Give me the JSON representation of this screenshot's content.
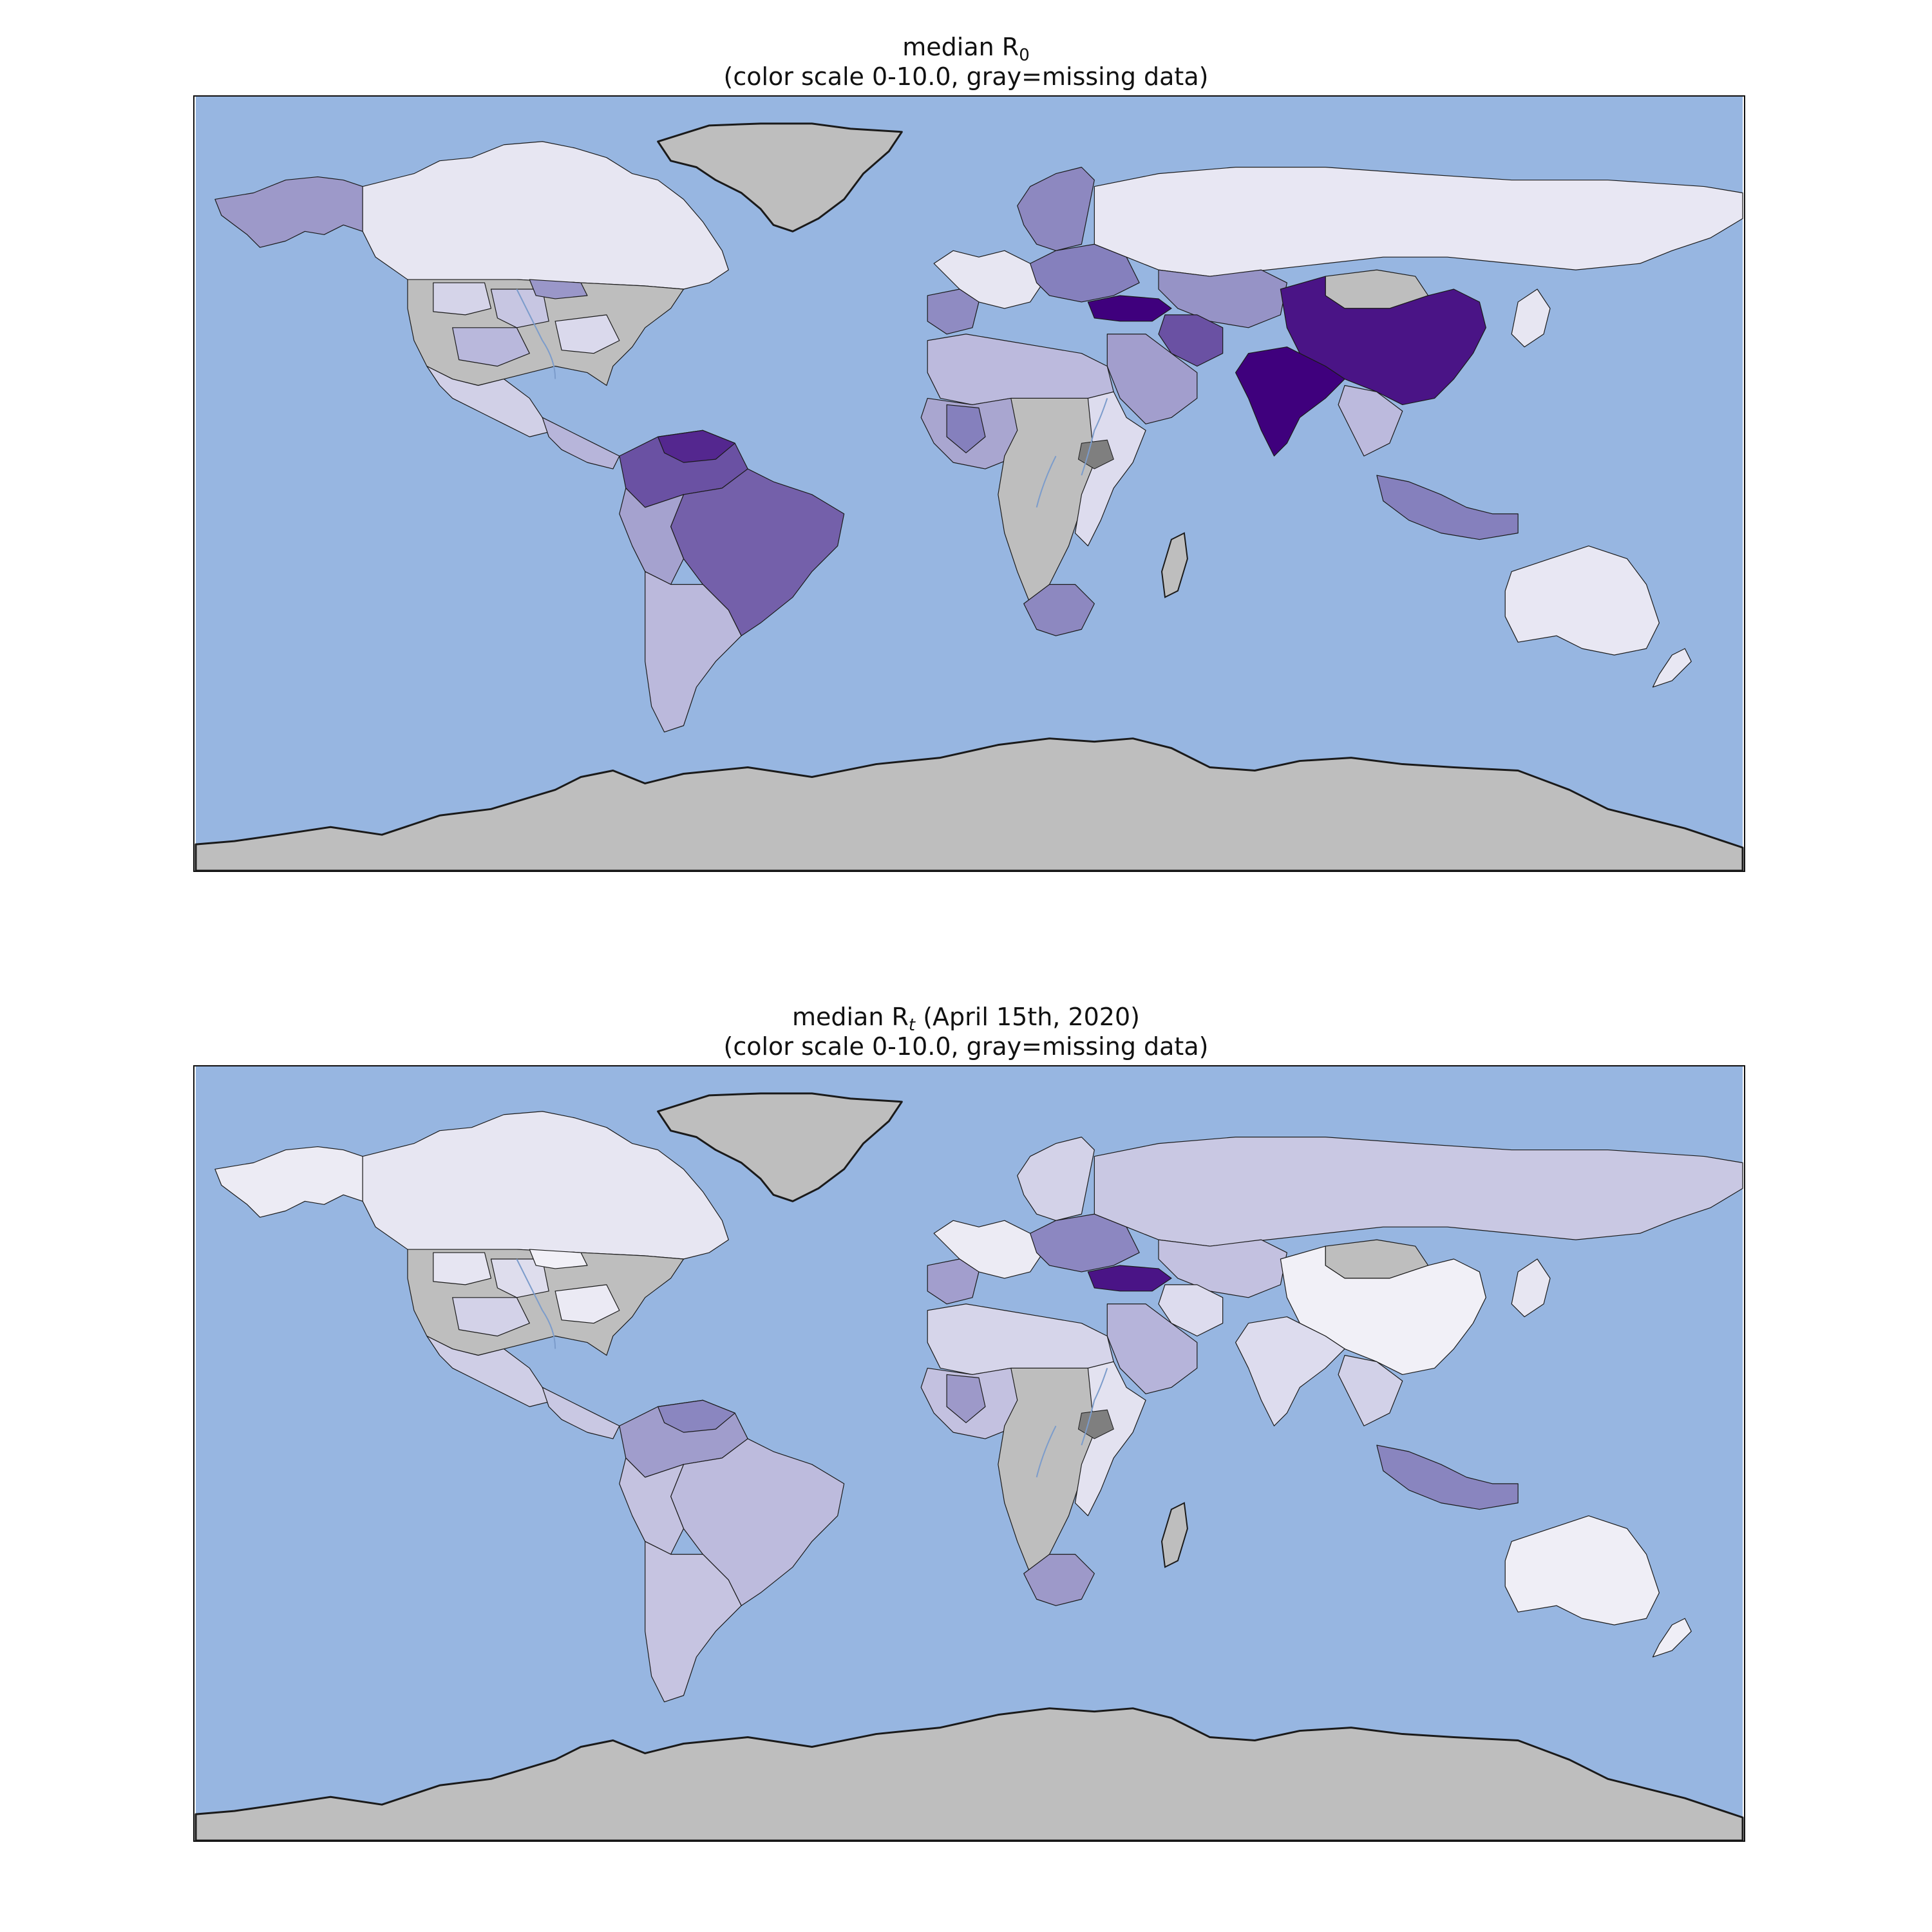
{
  "maps": [
    {
      "title_main": "median R",
      "title_sub": "0",
      "title_suffix": "",
      "subtitle": "(color scale 0-10.0, gray=missing data)"
    },
    {
      "title_main": "median R",
      "title_sub": "t",
      "title_suffix": " (April 15th, 2020)",
      "subtitle": "(color scale 0-10.0, gray=missing data)"
    }
  ],
  "colors": {
    "ocean": "#97b6e1",
    "missing": "#bebebe",
    "dark_missing": "#7f7f7f",
    "coast": "#1a1a1a",
    "river": "#7c9ccb"
  },
  "color_scale": {
    "min": 0,
    "max": 10.0
  },
  "regions": {
    "r0": {
      "canada": "#e7e6f2",
      "alaska": "#9d99c9",
      "greenland": "#bebebe",
      "usa": "#bebebe",
      "us_states": [
        "#d5d4e9",
        "#c7c6e2",
        "#9a97c9",
        "#b9b8dc",
        "#dad9ec"
      ],
      "mexico": "#d1d0e7",
      "central_america": "#b7b5da",
      "colombia_venezuela": "#6a51a3",
      "venezuela_core": "#54278f",
      "brazil": "#7460aa",
      "andes": "#a5a2cf",
      "southern_cone": "#bbb9dc",
      "western_europe": "#e7e6f2",
      "scandinavia": "#8d88c0",
      "eastern_europe": "#8580bd",
      "iberia": "#8f8bc2",
      "russia": "#e8e7f3",
      "turkey": "#3f007d",
      "iran": "#6a51a3",
      "central_asia": "#9693c6",
      "mongolia": "#bebebe",
      "china": "#4a1486",
      "india": "#3f007d",
      "arabia": "#a29ecd",
      "north_africa": "#bcbadd",
      "west_africa": "#a9a6d0",
      "west_africa_dark": "#8580bd",
      "central_africa": "#bebebe",
      "east_africa": "#dddcee",
      "south_africa": "#8d88c0",
      "southeast_asia": "#bcbadd",
      "indonesia": "#8580bd",
      "australia": "#e8e7f3",
      "nz": "#e8e7f3",
      "japan": "#e7e6f2",
      "antarctica": "#bebebe"
    },
    "rt": {
      "canada": "#e7e6f2",
      "alaska": "#ecebf4",
      "greenland": "#bebebe",
      "usa": "#bebebe",
      "us_states": [
        "#e6e5f2",
        "#dedded",
        "#f1f0f7",
        "#d3d2e8",
        "#ebeaf4"
      ],
      "mexico": "#cfcee6",
      "central_america": "#c9c8e3",
      "colombia_venezuela": "#a09dcc",
      "venezuela_core": "#8a86c0",
      "brazil": "#bdbbdd",
      "andes": "#c4c2e0",
      "southern_cone": "#c6c4e1",
      "western_europe": "#ecebf4",
      "scandinavia": "#d3d2e8",
      "eastern_europe": "#8c87c1",
      "iberia": "#a29ecd",
      "russia": "#c9c8e3",
      "turkey": "#4a1486",
      "iran": "#dddcee",
      "central_asia": "#c3c1e0",
      "mongolia": "#bebebe",
      "china": "#f1f0f7",
      "india": "#dddcee",
      "arabia": "#b6b4da",
      "north_africa": "#d6d5ea",
      "west_africa": "#c3c1e0",
      "west_africa_dark": "#9d99c9",
      "central_africa": "#bebebe",
      "east_africa": "#e3e2f0",
      "south_africa": "#9d99c9",
      "southeast_asia": "#d2d1e8",
      "indonesia": "#8985bf",
      "australia": "#efeef6",
      "nz": "#efeef6",
      "japan": "#e7e6f2",
      "antarctica": "#bebebe"
    }
  }
}
